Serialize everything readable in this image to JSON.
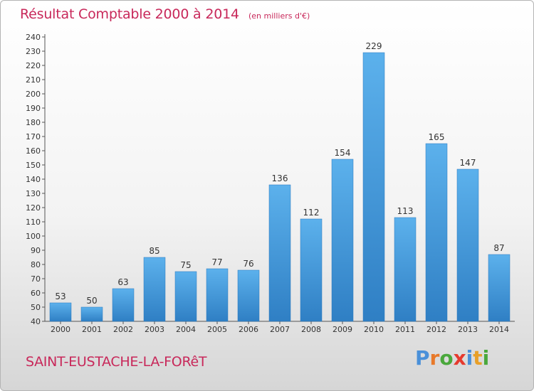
{
  "header": {
    "title": "Résultat Comptable 2000 à 2014",
    "subtitle": "(en milliers d'€)"
  },
  "footer": {
    "commune": "SAINT-EUSTACHE-LA-FORêT",
    "logo_text": "Proxiti"
  },
  "colors": {
    "title": "#c8285a",
    "bar": "#4a9fde",
    "logo_letters": [
      "#4a90d9",
      "#e8792a",
      "#4aa83c",
      "#e63a2e",
      "#4a90d9",
      "#e8a02a",
      "#4aa83c"
    ]
  },
  "chart_data": {
    "type": "bar",
    "title": "Résultat Comptable 2000 à 2014",
    "subtitle": "(en milliers d'€)",
    "categories": [
      "2000",
      "2001",
      "2002",
      "2003",
      "2004",
      "2005",
      "2006",
      "2007",
      "2008",
      "2009",
      "2010",
      "2011",
      "2012",
      "2013",
      "2014"
    ],
    "values": [
      53,
      50,
      63,
      85,
      75,
      77,
      76,
      136,
      112,
      154,
      229,
      113,
      165,
      147,
      87
    ],
    "ylim": [
      40,
      240
    ],
    "ytick_step": 10,
    "grid": false,
    "data_labels": true
  }
}
